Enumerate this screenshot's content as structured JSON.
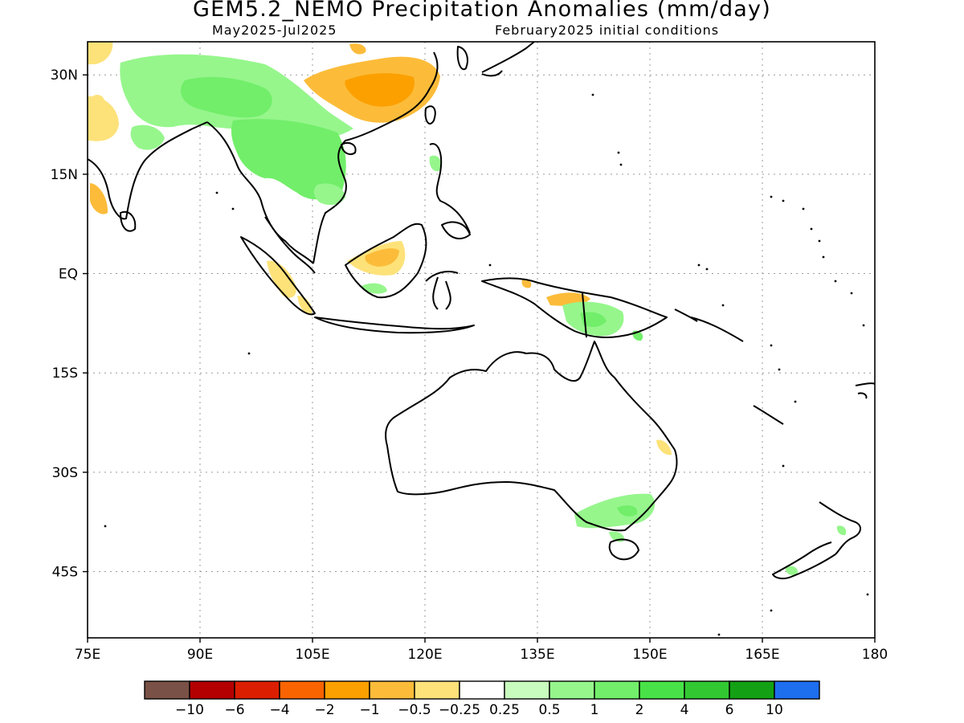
{
  "title": "GEM5.2_NEMO Precipitation Anomalies (mm/day)",
  "subtitle_left": "May2025-Jul2025",
  "subtitle_right": "February2025 initial conditions",
  "lat_ticks": [
    {
      "label": "30N",
      "value": 30
    },
    {
      "label": "15N",
      "value": 15
    },
    {
      "label": "EQ",
      "value": 0
    },
    {
      "label": "15S",
      "value": -15
    },
    {
      "label": "30S",
      "value": -30
    },
    {
      "label": "45S",
      "value": -45
    }
  ],
  "lon_ticks": [
    {
      "label": "75E",
      "value": 75
    },
    {
      "label": "90E",
      "value": 90
    },
    {
      "label": "105E",
      "value": 105
    },
    {
      "label": "120E",
      "value": 120
    },
    {
      "label": "135E",
      "value": 135
    },
    {
      "label": "150E",
      "value": 150
    },
    {
      "label": "165E",
      "value": 165
    },
    {
      "label": "180",
      "value": 180
    }
  ],
  "extent": {
    "lon": [
      75,
      180
    ],
    "lat": [
      -55,
      35
    ]
  },
  "colorbar": {
    "colors": [
      "#7a5146",
      "#b40000",
      "#dc1e00",
      "#fa6400",
      "#fca000",
      "#fcbc3a",
      "#fde27a",
      "#ffffff",
      "#c8fcbe",
      "#96f68c",
      "#72ee6a",
      "#48e248",
      "#32c832",
      "#14a014",
      "#1e6ef0"
    ],
    "labels": [
      "-10",
      "-6",
      "-4",
      "-2",
      "-1",
      "-0.5",
      "-0.25",
      "0.25",
      "0.5",
      "1",
      "2",
      "4",
      "6",
      "10"
    ]
  }
}
